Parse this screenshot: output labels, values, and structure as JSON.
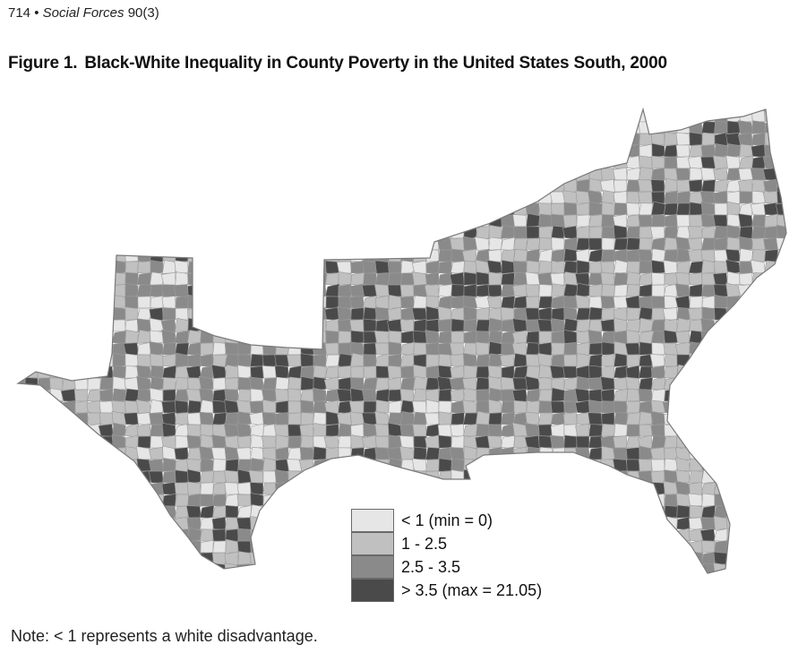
{
  "header": {
    "page_number": "714",
    "bullet": "•",
    "journal": "Social Forces",
    "volume": "90(3)"
  },
  "figure": {
    "number": "Figure 1.",
    "title": "Black-White Inequality in County Poverty in the United States South, 2000"
  },
  "map": {
    "region": "United States South",
    "year": 2000,
    "unit": "county",
    "background": "#ffffff",
    "border_color": "#9a9a9a"
  },
  "legend": {
    "items": [
      {
        "label": "< 1 (min = 0)",
        "color": "#e6e6e6"
      },
      {
        "label": "1 - 2.5",
        "color": "#c0c0c0"
      },
      {
        "label": "2.5 - 3.5",
        "color": "#8a8a8a"
      },
      {
        "label": "> 3.5 (max = 21.05)",
        "color": "#4a4a4a"
      }
    ]
  },
  "note": "Note: < 1 represents a white disadvantage."
}
